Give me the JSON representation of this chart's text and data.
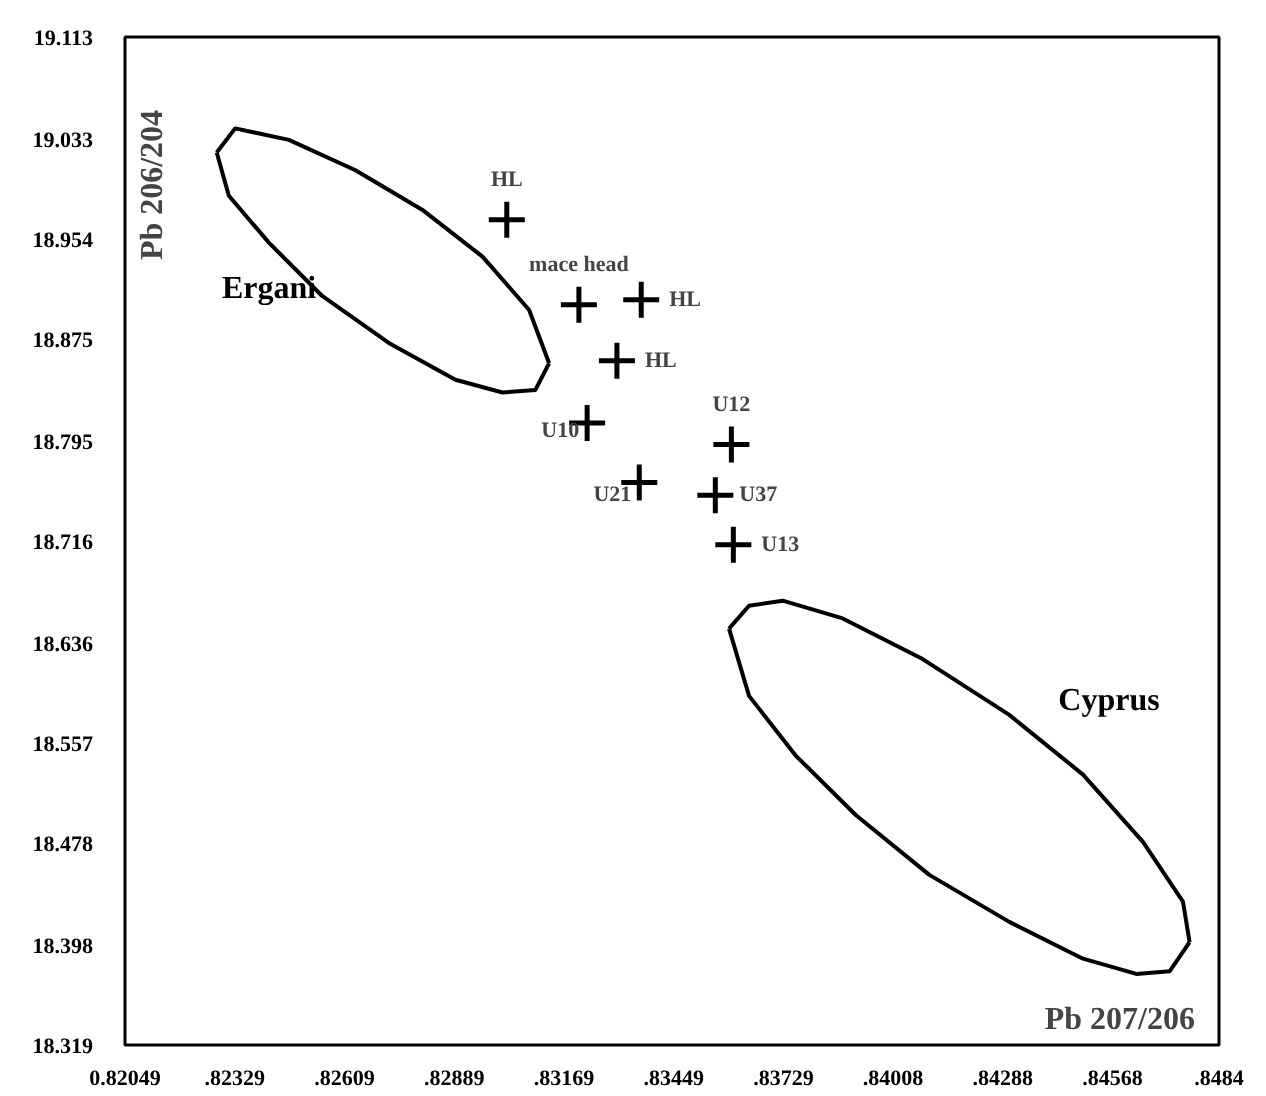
{
  "chart_data": {
    "type": "scatter",
    "xlabel": "Pb 207/206",
    "ylabel": "Pb 206/204",
    "marker": "cross",
    "grid": false,
    "xlim": [
      0.82049,
      0.8484
    ],
    "ylim": [
      18.319,
      19.113
    ],
    "xticks": [
      {
        "value": 0.82049,
        "label": "0.82049"
      },
      {
        "value": 0.82329,
        "label": ".82329"
      },
      {
        "value": 0.82609,
        "label": ".82609"
      },
      {
        "value": 0.82889,
        "label": ".82889"
      },
      {
        "value": 0.83169,
        "label": ".83169"
      },
      {
        "value": 0.83449,
        "label": ".83449"
      },
      {
        "value": 0.83729,
        "label": ".83729"
      },
      {
        "value": 0.84008,
        "label": ".84008"
      },
      {
        "value": 0.84288,
        "label": ".84288"
      },
      {
        "value": 0.84568,
        "label": ".84568"
      },
      {
        "value": 0.8484,
        "label": ".8484"
      }
    ],
    "yticks": [
      18.319,
      18.398,
      18.478,
      18.557,
      18.636,
      18.716,
      18.795,
      18.875,
      18.954,
      19.033,
      19.113
    ],
    "series": [
      {
        "color": "#000000",
        "x": [
          0.83023,
          0.83207,
          0.83366,
          0.83304,
          0.83228,
          0.83361,
          0.83596,
          0.83555,
          0.83601
        ],
        "values": [
          18.969,
          18.902,
          18.906,
          18.858,
          18.809,
          18.762,
          18.792,
          18.752,
          18.713
        ]
      },
      {
        "type": "line",
        "color": "#000000",
        "marker": "none",
        "x": [
          0.82283,
          0.8233,
          0.82467,
          0.82637,
          0.82807,
          0.82961,
          0.8308,
          0.83131
        ],
        "values": [
          19.022,
          19.041,
          19.032,
          19.008,
          18.977,
          18.94,
          18.898,
          18.856
        ]
      },
      {
        "type": "line",
        "name": "Ergani",
        "color": "#000000",
        "marker": "none",
        "x": [
          0.82283,
          0.82314,
          0.82416,
          0.82552,
          0.82722,
          0.82892,
          0.83012,
          0.83096,
          0.83131
        ],
        "values": [
          19.022,
          18.988,
          18.951,
          18.909,
          18.872,
          18.843,
          18.833,
          18.835,
          18.856
        ]
      },
      {
        "type": "line",
        "name": "Cyprus",
        "color": "#000000",
        "marker": "none",
        "x": [
          0.8359,
          0.83641,
          0.83727,
          0.8388,
          0.84084,
          0.84305,
          0.84493,
          0.84646,
          0.84748,
          0.84765
        ],
        "values": [
          18.647,
          18.665,
          18.669,
          18.655,
          18.623,
          18.579,
          18.532,
          18.479,
          18.432,
          18.4
        ]
      },
      {
        "type": "line",
        "color": "#000000",
        "marker": "none",
        "x": [
          0.8359,
          0.83641,
          0.8376,
          0.83914,
          0.84101,
          0.84305,
          0.84493,
          0.84629,
          0.84714,
          0.84765
        ],
        "values": [
          18.647,
          18.594,
          18.547,
          18.5,
          18.453,
          18.416,
          18.387,
          18.375,
          18.377,
          18.4
        ]
      }
    ],
    "annotations": [
      {
        "text": "HL",
        "x": 0.83023,
        "y": 18.969
      },
      {
        "text": "mace head",
        "x": 0.83207,
        "y": 18.902
      },
      {
        "text": "HL",
        "x": 0.83366,
        "y": 18.906
      },
      {
        "text": "HL",
        "x": 0.83304,
        "y": 18.858
      },
      {
        "text": "U10",
        "x": 0.83228,
        "y": 18.809
      },
      {
        "text": "U21",
        "x": 0.83361,
        "y": 18.762
      },
      {
        "text": "U12",
        "x": 0.83596,
        "y": 18.792
      },
      {
        "text": "U37",
        "x": 0.83555,
        "y": 18.752
      },
      {
        "text": "U13",
        "x": 0.83601,
        "y": 18.713
      }
    ]
  }
}
